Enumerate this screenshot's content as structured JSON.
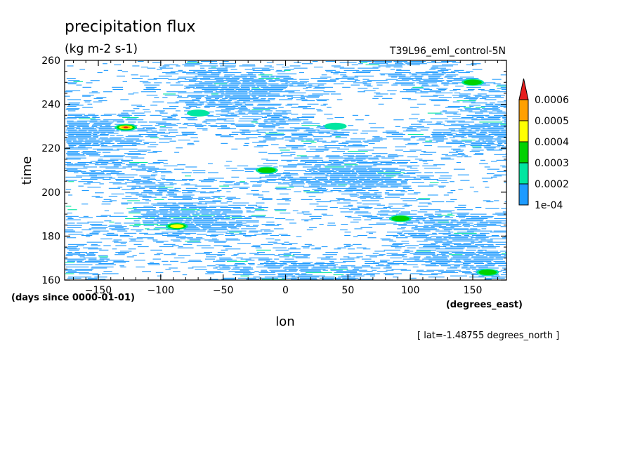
{
  "chart_data": {
    "type": "heatmap",
    "title": "precipitation flux",
    "units": "(kg m-2 s-1)",
    "dataset_label": "T39L96_eml_control-5N",
    "xlabel": "lon",
    "x_units": "(degrees_east)",
    "ylabel": "time",
    "y_units": "(days since 0000-01-01)",
    "footnote": "[ lat=-1.48755 degrees_north ]",
    "xlim": [
      -177,
      177
    ],
    "ylim": [
      160,
      260
    ],
    "x_ticks": [
      -150,
      -100,
      -50,
      0,
      50,
      100,
      150
    ],
    "x_tick_labels": [
      "−150",
      "−100",
      "−50",
      "0",
      "50",
      "100",
      "150"
    ],
    "y_ticks": [
      160,
      180,
      200,
      220,
      240,
      260
    ],
    "y_tick_labels": [
      "160",
      "180",
      "200",
      "220",
      "240",
      "260"
    ],
    "colorbar": {
      "levels": [
        0.0001,
        0.0002,
        0.0003,
        0.0004,
        0.0005,
        0.0006
      ],
      "labels": [
        "1e-04",
        "0.0002",
        "0.0003",
        "0.0004",
        "0.0005",
        "0.0006"
      ],
      "colors": [
        "#1e9bff",
        "#00e6a0",
        "#00d200",
        "#ffff00",
        "#ffa000",
        "#e61e1e"
      ],
      "extend": "max"
    },
    "hotspots": [
      {
        "lon": -128,
        "time": 229.5,
        "level": 5
      },
      {
        "lon": -87,
        "time": 184.5,
        "level": 3
      },
      {
        "lon": 92,
        "time": 188,
        "level": 2
      },
      {
        "lon": 162,
        "time": 163.5,
        "level": 2
      },
      {
        "lon": -15,
        "time": 210,
        "level": 2
      },
      {
        "lon": 150,
        "time": 250,
        "level": 2
      },
      {
        "lon": -70,
        "time": 236,
        "level": 1
      },
      {
        "lon": 40,
        "time": 230,
        "level": 1
      }
    ]
  },
  "colors": {
    "background": "#ffffff",
    "frame": "#000000"
  }
}
